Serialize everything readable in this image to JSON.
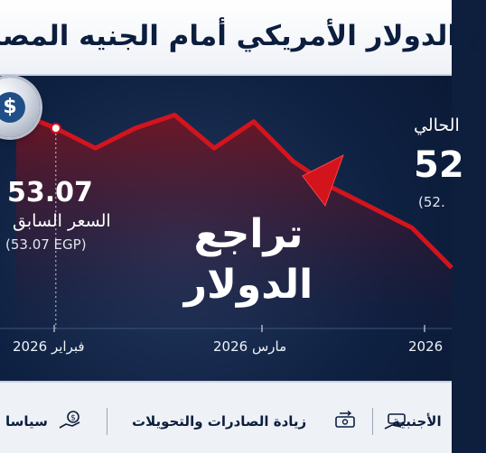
{
  "title": "ع الدولار الأمريكي أمام الجنيه المصر",
  "chart_data": {
    "type": "line",
    "title": "ع الدولار الأمريكي أمام الجنيه المصر",
    "center_annotation": [
      "تراجع",
      "الدولار"
    ],
    "x_tick_labels": [
      "فبراير 2026",
      "مارس 2026",
      "2026"
    ],
    "series": [
      {
        "values": [
          53.07,
          52.95,
          52.8,
          52.95,
          53.05,
          52.8,
          53.0,
          52.7,
          52.5,
          52.35,
          52.2,
          51.9
        ]
      }
    ],
    "previous": {
      "value": "53.07",
      "label": "السعر السابق",
      "sub": "(53.07 EGP)"
    },
    "current": {
      "value": "52",
      "label": "الحالي",
      "sub": "(52."
    },
    "colors": {
      "line": "#d4141c",
      "fill_top": "#8e1119",
      "background": "#0f2142"
    }
  },
  "footer": {
    "factors": [
      {
        "label": "سياسا",
        "icon": "hand-coin-icon"
      },
      {
        "label": "زيادة الصادرات والتحويلات",
        "icon": "cash-transfer-icon"
      },
      {
        "label": "الأجنبية",
        "icon": "cash-hand-icon"
      }
    ]
  }
}
